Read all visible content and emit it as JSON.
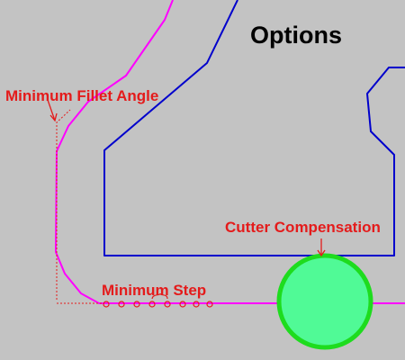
{
  "title": "Options",
  "annotations": {
    "fillet": "Minimum Fillet Angle",
    "step": "Minimum Step",
    "cutter": "Cutter Compensation"
  },
  "colors": {
    "background": "#c3c3c3",
    "toolpath": "#ff00ff",
    "boundary": "#0000cc",
    "annotation": "#e41b1b",
    "cutter_fill": "#50fa96",
    "cutter_outline": "#1edc1e"
  },
  "icons": [
    "arrow-icon",
    "step-marker-icon",
    "cutter-circle-icon"
  ]
}
